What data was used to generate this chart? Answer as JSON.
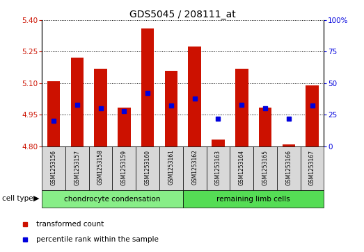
{
  "title": "GDS5045 / 208111_at",
  "samples": [
    "GSM1253156",
    "GSM1253157",
    "GSM1253158",
    "GSM1253159",
    "GSM1253160",
    "GSM1253161",
    "GSM1253162",
    "GSM1253163",
    "GSM1253164",
    "GSM1253165",
    "GSM1253166",
    "GSM1253167"
  ],
  "red_values": [
    5.11,
    5.22,
    5.17,
    4.985,
    5.36,
    5.16,
    5.275,
    4.83,
    5.17,
    4.985,
    4.81,
    5.09
  ],
  "blue_percentiles": [
    20,
    33,
    30,
    28,
    42,
    32,
    38,
    22,
    33,
    30,
    22,
    32
  ],
  "baseline": 4.8,
  "ylim_left": [
    4.8,
    5.4
  ],
  "ylim_right": [
    0,
    100
  ],
  "yticks_left": [
    4.8,
    4.95,
    5.1,
    5.25,
    5.4
  ],
  "yticks_right": [
    0,
    25,
    50,
    75,
    100
  ],
  "group1_label": "chondrocyte condensation",
  "group2_label": "remaining limb cells",
  "group1_count": 6,
  "group2_count": 6,
  "cell_type_label": "cell type",
  "legend_red": "transformed count",
  "legend_blue": "percentile rank within the sample",
  "bar_color": "#cc1100",
  "blue_color": "#0000dd",
  "group1_color": "#88ee88",
  "group2_color": "#55dd55",
  "bar_width": 0.55,
  "sample_box_color": "#d8d8d8",
  "plot_bg": "#ffffff"
}
